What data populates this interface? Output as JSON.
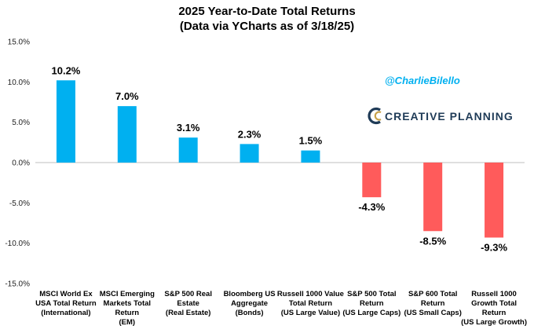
{
  "chart_data": {
    "type": "bar",
    "title": "2025 Year-to-Date Total Returns",
    "subtitle": "(Data via YCharts as of 3/18/25)",
    "xlabel": "",
    "ylabel": "",
    "ylim": [
      -15,
      15
    ],
    "yticks": [
      15,
      10,
      5,
      0,
      -5,
      -10,
      -15
    ],
    "ytick_labels": [
      "15.0%",
      "10.0%",
      "5.0%",
      "0.0%",
      "-5.0%",
      "-10.0%",
      "-15.0%"
    ],
    "grid": false,
    "legend": "none",
    "positive_color": "#00b0f0",
    "negative_color": "#ff5b5b",
    "categories": [
      [
        "MSCI World Ex",
        "USA Total Return",
        "(International)"
      ],
      [
        "MSCI Emerging",
        "Markets Total",
        "Return",
        "(EM)"
      ],
      [
        "S&P 500 Real",
        "Estate",
        "(Real Estate)"
      ],
      [
        "Bloomberg US",
        "Aggregate",
        "(Bonds)"
      ],
      [
        "Russell 1000 Value",
        "Total Return",
        "(US Large Value)"
      ],
      [
        "S&P 500 Total",
        "Return",
        "(US Large Caps)"
      ],
      [
        "S&P 600 Total",
        "Return",
        "(US Small Caps)"
      ],
      [
        "Russell 1000",
        "Growth Total",
        "Return",
        "(US Large Growth)"
      ]
    ],
    "values": [
      10.2,
      7.0,
      3.1,
      2.3,
      1.5,
      -4.3,
      -8.5,
      -9.3
    ],
    "data_labels": [
      "10.2%",
      "7.0%",
      "3.1%",
      "2.3%",
      "1.5%",
      "-4.3%",
      "-8.5%",
      "-9.3%"
    ]
  },
  "annotations": {
    "handle": "@CharlieBilello",
    "brand_name": "CREATIVE PLANNING",
    "handle_color": "#00b0f0",
    "brand_color": "#1f3b57",
    "brand_accent": "#c8a24a"
  }
}
